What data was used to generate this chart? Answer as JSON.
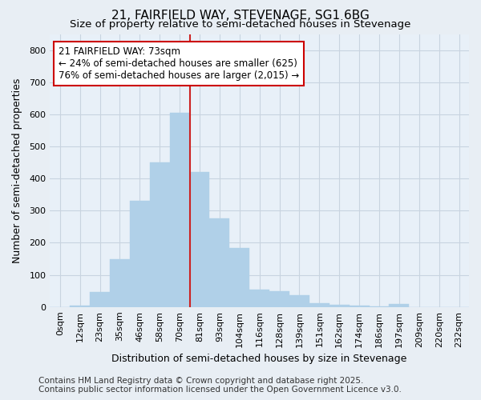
{
  "title": "21, FAIRFIELD WAY, STEVENAGE, SG1 6BG",
  "subtitle": "Size of property relative to semi-detached houses in Stevenage",
  "xlabel": "Distribution of semi-detached houses by size in Stevenage",
  "ylabel": "Number of semi-detached properties",
  "footnote1": "Contains HM Land Registry data © Crown copyright and database right 2025.",
  "footnote2": "Contains public sector information licensed under the Open Government Licence v3.0.",
  "annotation_title": "21 FAIRFIELD WAY: 73sqm",
  "annotation_line1": "← 24% of semi-detached houses are smaller (625)",
  "annotation_line2": "76% of semi-detached houses are larger (2,015) →",
  "bar_labels": [
    "0sqm",
    "12sqm",
    "23sqm",
    "35sqm",
    "46sqm",
    "58sqm",
    "70sqm",
    "81sqm",
    "93sqm",
    "104sqm",
    "116sqm",
    "128sqm",
    "139sqm",
    "151sqm",
    "162sqm",
    "174sqm",
    "186sqm",
    "197sqm",
    "209sqm",
    "220sqm",
    "232sqm"
  ],
  "bar_values": [
    0,
    5,
    48,
    150,
    330,
    450,
    605,
    420,
    275,
    185,
    55,
    50,
    38,
    12,
    8,
    4,
    2,
    10,
    0,
    0,
    0
  ],
  "bar_color": "#b0d0e8",
  "bar_edge_color": "#b0d0e8",
  "marker_index": 6,
  "ylim": [
    0,
    850
  ],
  "yticks": [
    0,
    100,
    200,
    300,
    400,
    500,
    600,
    700,
    800
  ],
  "bg_color": "#e8eef4",
  "plot_bg_color": "#e8f0f8",
  "annotation_box_color": "#ffffff",
  "annotation_border_color": "#cc0000",
  "red_line_color": "#cc2222",
  "grid_color": "#c8d4e0",
  "title_fontsize": 11,
  "subtitle_fontsize": 9.5,
  "axis_label_fontsize": 9,
  "tick_fontsize": 8,
  "annotation_fontsize": 8.5,
  "footnote_fontsize": 7.5
}
